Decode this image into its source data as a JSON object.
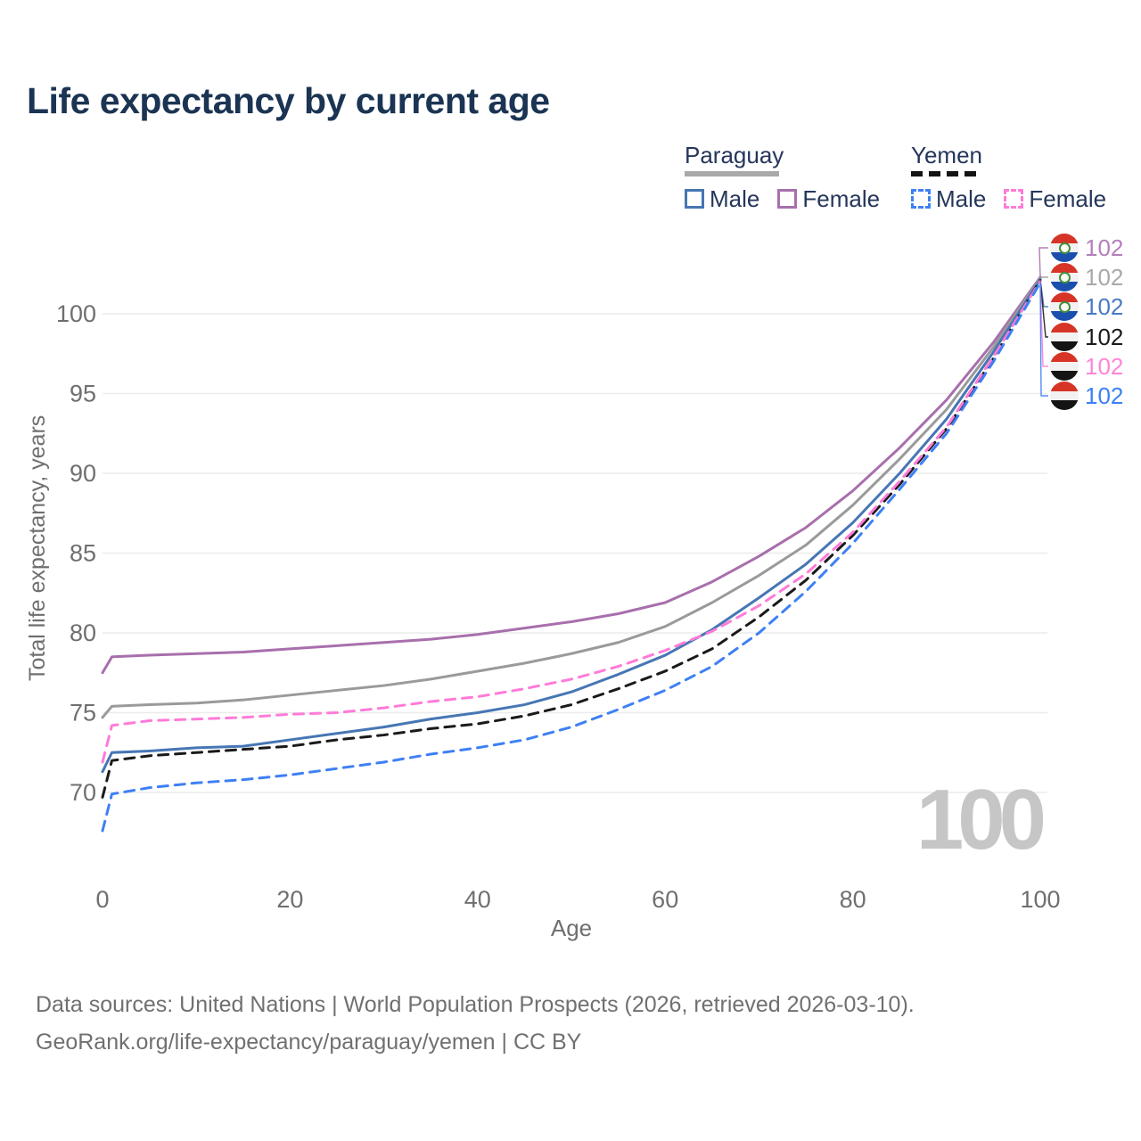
{
  "header": {
    "title": "Life expectancy by current age"
  },
  "legend": {
    "paraguay_label": "Paraguay",
    "yemen_label": "Yemen",
    "paraguay_male": "Male",
    "paraguay_female": "Female",
    "yemen_male": "Male",
    "yemen_female": "Female"
  },
  "chart_data": {
    "type": "line",
    "title": "Life expectancy by current age",
    "xlabel": "Age",
    "ylabel": "Total life expectancy, years",
    "x_ticks": [
      0,
      20,
      40,
      60,
      80,
      100
    ],
    "y_ticks": [
      70,
      75,
      80,
      85,
      90,
      95,
      100
    ],
    "xlim": [
      0,
      100
    ],
    "ylim": [
      67,
      103
    ],
    "grid": "horizontal",
    "legend_position": "top-right",
    "watermark": "100",
    "x": [
      0,
      1,
      5,
      10,
      15,
      20,
      25,
      30,
      35,
      40,
      45,
      50,
      55,
      60,
      65,
      70,
      75,
      80,
      85,
      90,
      95,
      100
    ],
    "series": [
      {
        "name": "Paraguay Female",
        "country": "Paraguay",
        "sex": "Female",
        "style": "solid",
        "color": "#a86fad",
        "label_color": "#b57fbc",
        "flag": "paraguay",
        "end_label": "102",
        "values": [
          77.5,
          78.5,
          78.6,
          78.7,
          78.8,
          79.0,
          79.2,
          79.4,
          79.6,
          79.9,
          80.3,
          80.7,
          81.2,
          81.9,
          83.2,
          84.8,
          86.6,
          88.9,
          91.6,
          94.6,
          98.2,
          102.3
        ]
      },
      {
        "name": "Paraguay Both sexes",
        "country": "Paraguay",
        "sex": "Both",
        "style": "solid",
        "color": "#9a9a9a",
        "label_color": "#a9a9a9",
        "flag": "paraguay",
        "end_label": "102",
        "values": [
          74.7,
          75.4,
          75.5,
          75.6,
          75.8,
          76.1,
          76.4,
          76.7,
          77.1,
          77.6,
          78.1,
          78.7,
          79.4,
          80.4,
          81.9,
          83.6,
          85.5,
          88.0,
          90.9,
          94.0,
          97.9,
          102.25
        ]
      },
      {
        "name": "Paraguay Male",
        "country": "Paraguay",
        "sex": "Male",
        "style": "solid",
        "color": "#4676b4",
        "label_color": "#4a7ac4",
        "flag": "paraguay",
        "end_label": "102",
        "values": [
          71.3,
          72.5,
          72.6,
          72.8,
          72.9,
          73.3,
          73.7,
          74.1,
          74.6,
          75.0,
          75.5,
          76.3,
          77.4,
          78.6,
          80.2,
          82.2,
          84.3,
          86.9,
          90.0,
          93.4,
          97.6,
          102.15
        ]
      },
      {
        "name": "Yemen Both sexes",
        "country": "Yemen",
        "sex": "Both",
        "style": "dashed",
        "color": "#1a1a1a",
        "label_color": "#1a1a1a",
        "flag": "yemen",
        "end_label": "102",
        "values": [
          69.7,
          72.0,
          72.3,
          72.5,
          72.7,
          72.9,
          73.3,
          73.6,
          74.0,
          74.3,
          74.8,
          75.5,
          76.5,
          77.6,
          79.0,
          81.0,
          83.3,
          86.1,
          89.3,
          92.8,
          97.2,
          102.1
        ]
      },
      {
        "name": "Yemen Female",
        "country": "Yemen",
        "sex": "Female",
        "style": "dashed",
        "color": "#ff7bd8",
        "label_color": "#ff85d8",
        "flag": "yemen",
        "end_label": "102",
        "values": [
          71.9,
          74.2,
          74.5,
          74.6,
          74.7,
          74.9,
          75.0,
          75.3,
          75.7,
          76.0,
          76.5,
          77.1,
          77.9,
          78.9,
          80.1,
          81.7,
          83.7,
          86.3,
          89.5,
          92.9,
          97.3,
          102.05
        ]
      },
      {
        "name": "Yemen Male",
        "country": "Yemen",
        "sex": "Male",
        "style": "dashed",
        "color": "#3e80f4",
        "label_color": "#3b80f4",
        "flag": "yemen",
        "end_label": "102",
        "values": [
          67.6,
          69.9,
          70.3,
          70.6,
          70.8,
          71.1,
          71.5,
          71.9,
          72.4,
          72.8,
          73.3,
          74.1,
          75.2,
          76.4,
          77.9,
          80.0,
          82.6,
          85.6,
          89.0,
          92.5,
          97.0,
          101.95
        ]
      }
    ]
  },
  "footer": {
    "line1": "Data sources: United Nations | World Population Prospects (2026, retrieved 2026-03-10).",
    "line2": "GeoRank.org/life-expectancy/paraguay/yemen | CC BY"
  }
}
